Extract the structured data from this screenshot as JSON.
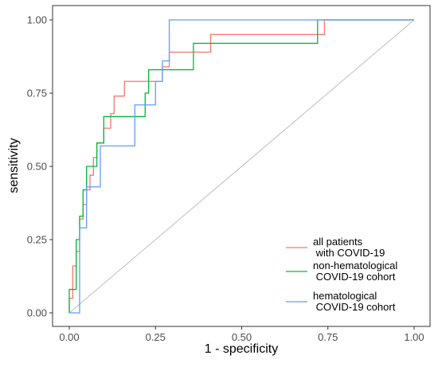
{
  "chart_data": {
    "type": "line",
    "title": "",
    "xlabel": "1 - specificity",
    "ylabel": "sensitivity",
    "xlim": [
      0,
      1
    ],
    "ylim": [
      0,
      1
    ],
    "x_ticks": [
      0,
      0.25,
      0.5,
      0.75,
      1
    ],
    "y_ticks": [
      0,
      0.25,
      0.5,
      0.75,
      1
    ],
    "x_tick_labels": [
      "0.00",
      "0.25",
      "0.50",
      "0.75",
      "1.00"
    ],
    "y_tick_labels": [
      "0.00",
      "0.25",
      "0.50",
      "0.75",
      "1.00"
    ],
    "grid": false,
    "legend_position": "bottom-right",
    "reference_line": {
      "x": [
        0,
        1
      ],
      "y": [
        0,
        1
      ],
      "color": "#bdbdbd"
    },
    "series": [
      {
        "name": "all patients\n with COVID-19",
        "color": "#f8766d",
        "x": [
          0,
          0,
          0.01,
          0.01,
          0.02,
          0.02,
          0.03,
          0.03,
          0.04,
          0.04,
          0.05,
          0.05,
          0.06,
          0.06,
          0.07,
          0.07,
          0.08,
          0.08,
          0.1,
          0.1,
          0.12,
          0.12,
          0.13,
          0.13,
          0.14,
          0.14,
          0.16,
          0.16,
          0.27,
          0.27,
          0.29,
          0.29,
          0.41,
          0.41,
          0.73,
          0.73,
          0.74,
          0.74,
          1
        ],
        "y": [
          0,
          0.05,
          0.05,
          0.16,
          0.16,
          0.21,
          0.21,
          0.32,
          0.32,
          0.37,
          0.37,
          0.42,
          0.42,
          0.47,
          0.47,
          0.53,
          0.53,
          0.58,
          0.58,
          0.63,
          0.63,
          0.68,
          0.68,
          0.74,
          0.74,
          0.74,
          0.74,
          0.79,
          0.79,
          0.84,
          0.84,
          0.89,
          0.89,
          0.95,
          0.95,
          0.95,
          0.95,
          1,
          1
        ]
      },
      {
        "name": "non-hematological\n COVID-19 cohort",
        "color": "#00ba38",
        "x": [
          0,
          0,
          0.02,
          0.02,
          0.03,
          0.03,
          0.04,
          0.04,
          0.05,
          0.05,
          0.07,
          0.07,
          0.08,
          0.08,
          0.1,
          0.1,
          0.17,
          0.17,
          0.22,
          0.22,
          0.23,
          0.23,
          0.27,
          0.27,
          0.36,
          0.36,
          0.72,
          0.72,
          1
        ],
        "y": [
          0,
          0.08,
          0.08,
          0.25,
          0.25,
          0.33,
          0.33,
          0.42,
          0.42,
          0.5,
          0.5,
          0.5,
          0.5,
          0.58,
          0.58,
          0.67,
          0.67,
          0.67,
          0.67,
          0.75,
          0.75,
          0.83,
          0.83,
          0.83,
          0.83,
          0.92,
          0.92,
          1,
          1
        ]
      },
      {
        "name": "hematological\n COVID-19 cohort",
        "color": "#619cff",
        "x": [
          0,
          0.03,
          0.03,
          0.05,
          0.05,
          0.09,
          0.09,
          0.19,
          0.19,
          0.25,
          0.25,
          0.27,
          0.27,
          0.29,
          0.29,
          1
        ],
        "y": [
          0,
          0,
          0.29,
          0.29,
          0.43,
          0.43,
          0.57,
          0.57,
          0.71,
          0.71,
          0.79,
          0.79,
          0.86,
          0.86,
          1,
          1
        ]
      }
    ]
  }
}
